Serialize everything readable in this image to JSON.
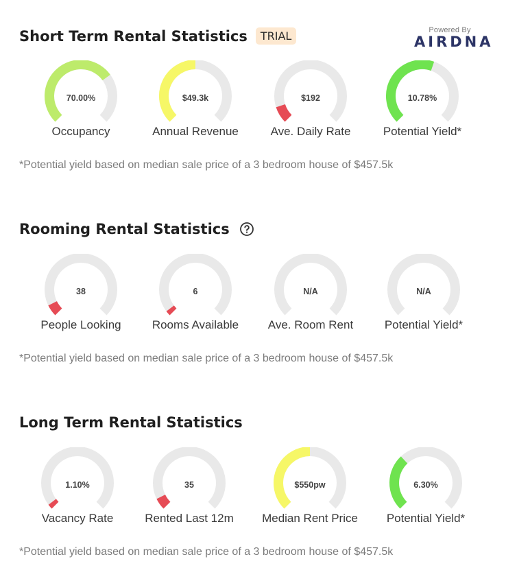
{
  "colors": {
    "track": "#e9e9e9",
    "green_light": "#bdeb6b",
    "green": "#6fe34f",
    "yellow": "#f6f767",
    "red": "#e64b55"
  },
  "powered_by": {
    "label": "Powered By",
    "logo_text": "AIRDNA"
  },
  "short_term": {
    "title": "Short Term Rental Statistics",
    "badge": "TRIAL",
    "gauges": [
      {
        "value": "70.00%",
        "label": "Occupancy",
        "level": 0.7,
        "color": "#bdeb6b"
      },
      {
        "value": "$49.3k",
        "label": "Annual Revenue",
        "level": 0.5,
        "color": "#f6f767"
      },
      {
        "value": "$192",
        "label": "Ave. Daily Rate",
        "level": 0.1,
        "color": "#e64b55"
      },
      {
        "value": "10.78%",
        "label": "Potential Yield*",
        "level": 0.57,
        "color": "#6fe34f"
      }
    ],
    "footnote": "*Potential yield based on median sale price of a 3 bedroom house of $457.5k"
  },
  "rooming": {
    "title": "Rooming Rental Statistics",
    "help_icon": "question-circle-icon",
    "gauges": [
      {
        "value": "38",
        "label": "People Looking",
        "level": 0.07,
        "color": "#e64b55"
      },
      {
        "value": "6",
        "label": "Rooms Available",
        "level": 0.03,
        "color": "#e64b55"
      },
      {
        "value": "N/A",
        "label": "Ave. Room Rent",
        "level": 0,
        "color": "#e64b55"
      },
      {
        "value": "N/A",
        "label": "Potential Yield*",
        "level": 0,
        "color": "#e64b55"
      }
    ],
    "footnote": "*Potential yield based on median sale price of a 3 bedroom house of $457.5k"
  },
  "long_term": {
    "title": "Long Term Rental Statistics",
    "gauges": [
      {
        "value": "1.10%",
        "label": "Vacancy Rate",
        "level": 0.03,
        "color": "#e64b55"
      },
      {
        "value": "35",
        "label": "Rented Last 12m",
        "level": 0.07,
        "color": "#e64b55"
      },
      {
        "value": "$550pw",
        "label": "Median Rent Price",
        "level": 0.5,
        "color": "#f6f767"
      },
      {
        "value": "6.30%",
        "label": "Potential Yield*",
        "level": 0.34,
        "color": "#6fe34f"
      }
    ],
    "footnote": "*Potential yield based on median sale price of a 3 bedroom house of $457.5k"
  }
}
